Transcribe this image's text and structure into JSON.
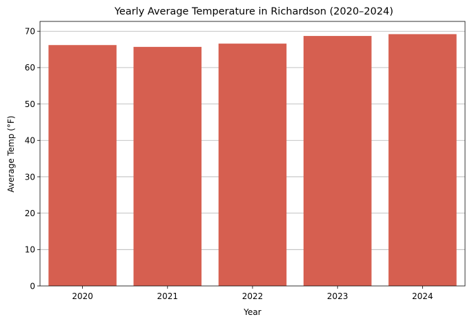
{
  "chart_data": {
    "type": "bar",
    "title": "Yearly Average Temperature in Richardson (2020–2024)",
    "xlabel": "Year",
    "ylabel": "Average Temp (°F)",
    "categories": [
      "2020",
      "2021",
      "2022",
      "2023",
      "2024"
    ],
    "values": [
      66.2,
      65.7,
      66.6,
      68.7,
      69.2
    ],
    "ylim": [
      0,
      72.7
    ],
    "yticks": [
      "0",
      "10",
      "20",
      "30",
      "40",
      "50",
      "60",
      "70"
    ],
    "grid": "horizontal",
    "bar_color": "#d65f50"
  }
}
